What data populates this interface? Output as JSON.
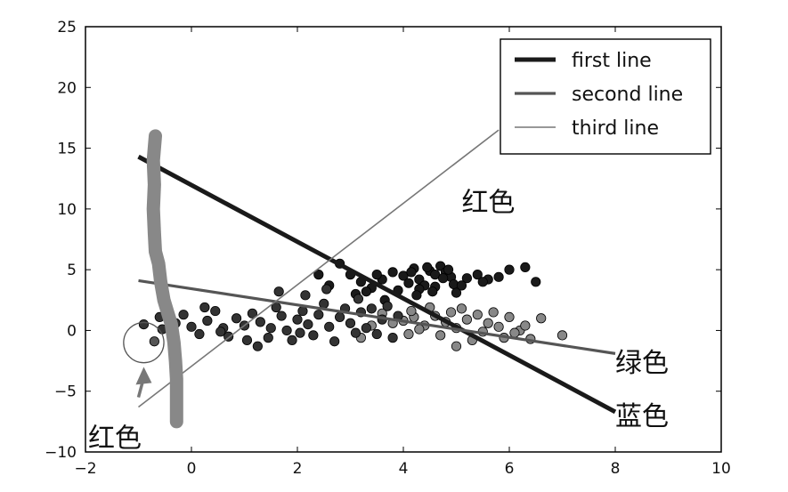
{
  "chart_data": {
    "type": "scatter",
    "title": "",
    "xlabel": "",
    "ylabel": "",
    "xlim": [
      -2,
      10
    ],
    "ylim": [
      -10,
      25
    ],
    "xticks": [
      -2,
      0,
      2,
      4,
      6,
      8,
      10
    ],
    "yticks": [
      -10,
      -5,
      0,
      5,
      10,
      15,
      20,
      25
    ],
    "xtick_labels": [
      "−2",
      "0",
      "2",
      "4",
      "6",
      "8",
      "10"
    ],
    "ytick_labels": [
      "−10",
      "−5",
      "0",
      "5",
      "10",
      "15",
      "20",
      "25"
    ],
    "grid": false,
    "legend_position": "top-right",
    "lines": [
      {
        "name": "first line",
        "x": [
          -1,
          8
        ],
        "y": [
          14.3,
          -6.7
        ],
        "color": "#1a1a1a",
        "width": "thick"
      },
      {
        "name": "second line",
        "x": [
          -1,
          8
        ],
        "y": [
          4.1,
          -1.9
        ],
        "color": "#555555",
        "width": "medium"
      },
      {
        "name": "third line",
        "x": [
          -1,
          5.8
        ],
        "y": [
          -6.3,
          16.5
        ],
        "color": "#777777",
        "width": "thin"
      }
    ],
    "scatter_groups": [
      {
        "color": "#1a1a1a",
        "points": [
          [
            3.2,
            4.0
          ],
          [
            3.4,
            3.5
          ],
          [
            3.6,
            4.2
          ],
          [
            3.8,
            4.8
          ],
          [
            4.0,
            4.5
          ],
          [
            4.1,
            3.9
          ],
          [
            4.2,
            5.1
          ],
          [
            4.3,
            4.2
          ],
          [
            4.4,
            3.7
          ],
          [
            4.5,
            4.9
          ],
          [
            4.6,
            4.6
          ],
          [
            4.7,
            5.3
          ],
          [
            4.8,
            4.8
          ],
          [
            4.9,
            4.4
          ],
          [
            4.95,
            3.8
          ],
          [
            4.6,
            3.6
          ],
          [
            4.3,
            3.4
          ],
          [
            5.0,
            3.1
          ],
          [
            5.2,
            4.3
          ],
          [
            5.4,
            4.6
          ],
          [
            5.6,
            4.2
          ],
          [
            5.8,
            4.4
          ],
          [
            6.0,
            5.0
          ],
          [
            6.3,
            5.2
          ],
          [
            6.5,
            4.0
          ],
          [
            3.0,
            4.6
          ],
          [
            3.5,
            4.6
          ],
          [
            4.15,
            4.8
          ],
          [
            4.45,
            5.2
          ],
          [
            4.75,
            4.3
          ],
          [
            5.1,
            3.7
          ],
          [
            4.55,
            3.2
          ],
          [
            3.9,
            3.3
          ],
          [
            3.1,
            3.0
          ],
          [
            2.6,
            3.7
          ],
          [
            2.4,
            4.6
          ],
          [
            2.8,
            5.5
          ],
          [
            3.3,
            3.2
          ],
          [
            4.85,
            5.0
          ],
          [
            5.5,
            4.0
          ],
          [
            4.25,
            2.9
          ],
          [
            3.65,
            2.5
          ]
        ]
      },
      {
        "color": "#888888",
        "points": [
          [
            4.0,
            0.8
          ],
          [
            4.2,
            1.1
          ],
          [
            4.4,
            0.4
          ],
          [
            4.6,
            1.2
          ],
          [
            4.8,
            0.7
          ],
          [
            5.0,
            0.2
          ],
          [
            5.2,
            0.9
          ],
          [
            5.4,
            1.3
          ],
          [
            5.6,
            0.6
          ],
          [
            5.8,
            0.3
          ],
          [
            6.0,
            1.1
          ],
          [
            6.2,
            0.0
          ],
          [
            6.4,
            -0.7
          ],
          [
            6.6,
            1.0
          ],
          [
            7.0,
            -0.4
          ],
          [
            5.1,
            1.8
          ],
          [
            4.9,
            1.5
          ],
          [
            4.5,
            1.9
          ],
          [
            4.3,
            0.1
          ],
          [
            4.1,
            -0.3
          ],
          [
            3.8,
            0.6
          ],
          [
            3.6,
            1.4
          ],
          [
            3.4,
            0.4
          ],
          [
            3.2,
            -0.6
          ],
          [
            5.3,
            -0.8
          ],
          [
            5.5,
            -0.1
          ],
          [
            5.9,
            -0.6
          ],
          [
            6.1,
            -0.2
          ],
          [
            4.7,
            -0.4
          ],
          [
            5.0,
            -1.3
          ],
          [
            4.15,
            1.6
          ],
          [
            5.7,
            1.5
          ],
          [
            6.3,
            0.4
          ]
        ]
      },
      {
        "color": "#333333",
        "points": [
          [
            -0.9,
            0.5
          ],
          [
            -0.6,
            1.1
          ],
          [
            -0.3,
            0.6
          ],
          [
            -0.15,
            1.3
          ],
          [
            0.0,
            0.3
          ],
          [
            0.15,
            -0.3
          ],
          [
            0.3,
            0.8
          ],
          [
            0.45,
            1.6
          ],
          [
            0.6,
            0.2
          ],
          [
            0.7,
            -0.5
          ],
          [
            0.85,
            1.0
          ],
          [
            1.0,
            0.4
          ],
          [
            1.15,
            1.4
          ],
          [
            1.3,
            0.7
          ],
          [
            1.45,
            -0.6
          ],
          [
            1.5,
            0.2
          ],
          [
            1.6,
            1.9
          ],
          [
            1.7,
            1.2
          ],
          [
            1.8,
            0.0
          ],
          [
            1.9,
            -0.8
          ],
          [
            2.0,
            0.9
          ],
          [
            2.1,
            1.6
          ],
          [
            2.2,
            0.5
          ],
          [
            2.3,
            -0.4
          ],
          [
            2.4,
            1.3
          ],
          [
            2.5,
            2.2
          ],
          [
            2.6,
            0.3
          ],
          [
            2.7,
            -0.9
          ],
          [
            2.8,
            1.1
          ],
          [
            2.9,
            1.8
          ],
          [
            3.0,
            0.6
          ],
          [
            3.1,
            -0.2
          ],
          [
            3.2,
            1.5
          ],
          [
            3.3,
            0.2
          ],
          [
            3.4,
            1.8
          ],
          [
            3.5,
            -0.3
          ],
          [
            3.6,
            0.9
          ],
          [
            3.7,
            2.0
          ],
          [
            3.8,
            -0.6
          ],
          [
            3.9,
            1.2
          ],
          [
            1.65,
            3.2
          ],
          [
            2.15,
            2.9
          ],
          [
            2.55,
            3.4
          ],
          [
            -0.35,
            -1.0
          ],
          [
            1.25,
            -1.3
          ],
          [
            0.55,
            -0.1
          ],
          [
            2.05,
            -0.2
          ],
          [
            3.15,
            2.6
          ],
          [
            1.05,
            -0.8
          ],
          [
            0.25,
            1.9
          ],
          [
            -0.55,
            0.1
          ]
        ]
      }
    ],
    "extra_points": [
      {
        "x": -0.7,
        "y": -0.9,
        "color": "#555555"
      }
    ],
    "brush_stroke": {
      "color": "#888888",
      "points": [
        [
          -0.68,
          16.0
        ],
        [
          -0.72,
          14.0
        ],
        [
          -0.7,
          12.0
        ],
        [
          -0.72,
          10.0
        ],
        [
          -0.7,
          8.0
        ],
        [
          -0.68,
          6.5
        ],
        [
          -0.62,
          5.5
        ],
        [
          -0.58,
          4.0
        ],
        [
          -0.52,
          2.5
        ],
        [
          -0.45,
          1.5
        ],
        [
          -0.38,
          0.5
        ],
        [
          -0.33,
          -1.0
        ],
        [
          -0.3,
          -2.5
        ],
        [
          -0.28,
          -4.0
        ],
        [
          -0.28,
          -5.5
        ],
        [
          -0.28,
          -7.5
        ]
      ]
    },
    "circle_marker": {
      "x": -0.9,
      "y": -1.0,
      "radius_data_x": 0.38
    },
    "arrow": {
      "from": [
        -1.0,
        -5.5
      ],
      "to": [
        -0.9,
        -3.0
      ],
      "color": "#777777"
    },
    "annotations": [
      {
        "text": "红色",
        "x": 5.1,
        "y": 9.8
      },
      {
        "text": "绿色",
        "x": 8.0,
        "y": -3.4
      },
      {
        "text": "蓝色",
        "x": 8.0,
        "y": -7.8
      },
      {
        "text": "红色",
        "x": -1.95,
        "y": -9.6
      }
    ]
  }
}
